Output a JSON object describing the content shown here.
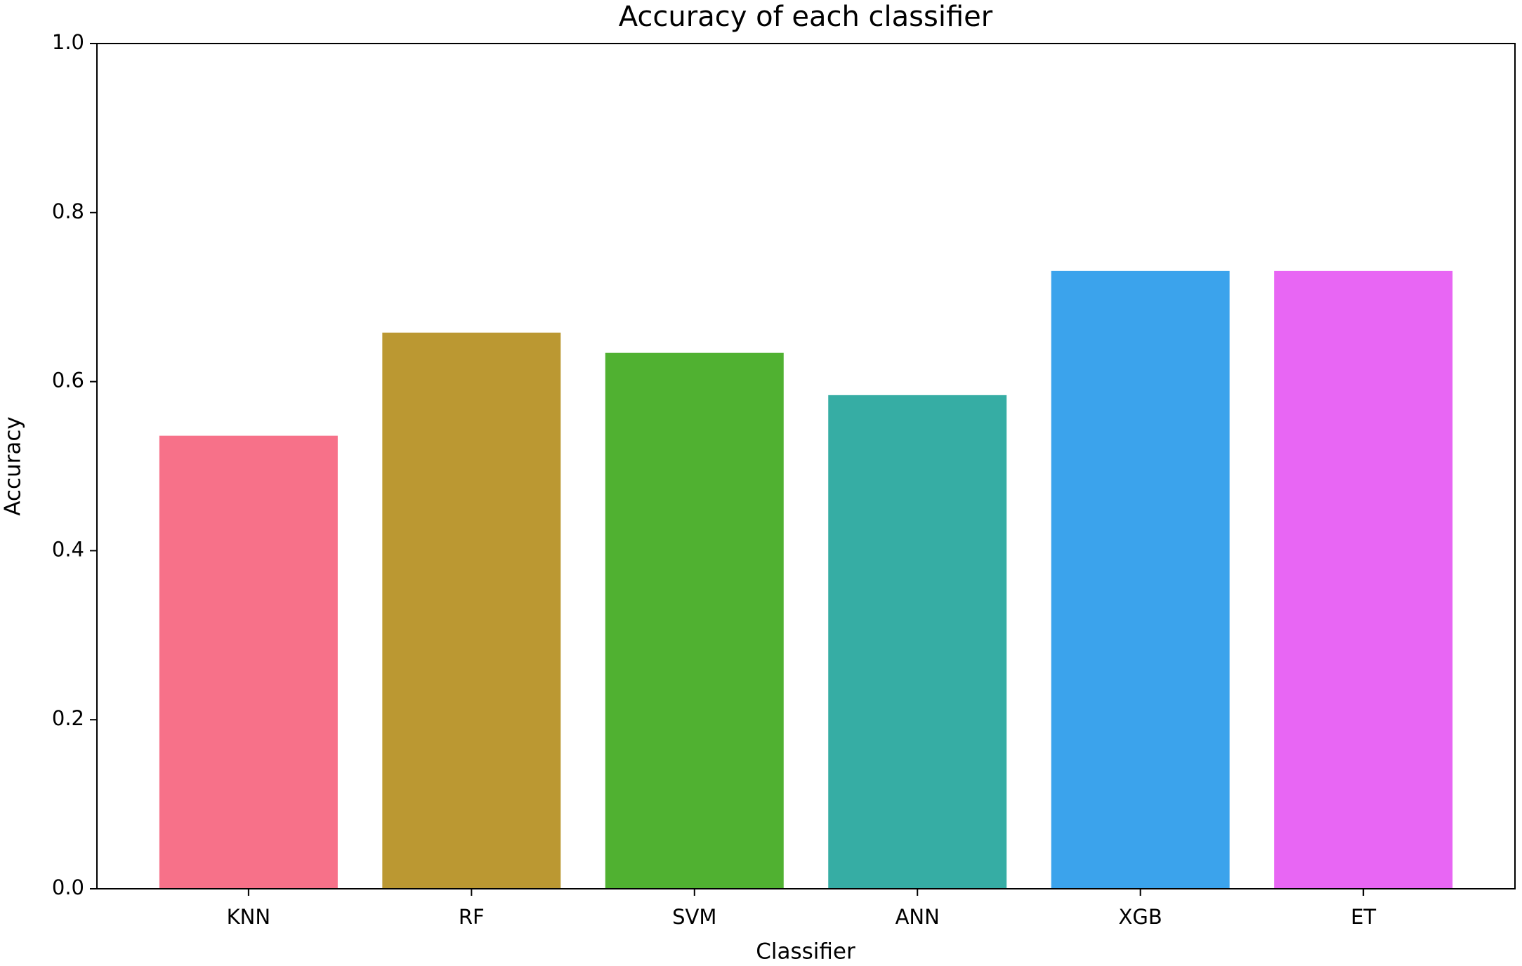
{
  "chart_data": {
    "type": "bar",
    "title": "Accuracy of each classifier",
    "x_label": "Classifier",
    "y_label": "Accuracy",
    "categories": [
      "KNN",
      "RF",
      "SVM",
      "ANN",
      "XGB",
      "ET"
    ],
    "values": [
      0.536,
      0.658,
      0.634,
      0.584,
      0.731,
      0.731
    ],
    "colors": [
      "#f77189",
      "#bb9832",
      "#50b131",
      "#36ada4",
      "#3ba3ec",
      "#e866f4"
    ],
    "ylim": [
      0,
      1.0
    ],
    "yticks": [
      {
        "value": 0,
        "label": "0.0"
      },
      0.2,
      0.4,
      0.6,
      0.8,
      {
        "value": 1,
        "label": "1.0"
      }
    ],
    "grid": false
  }
}
